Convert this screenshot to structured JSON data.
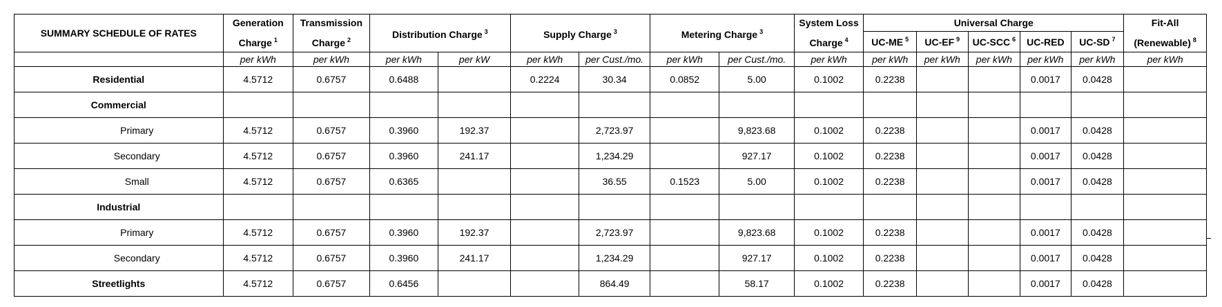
{
  "title": "SUMMARY SCHEDULE OF RATES",
  "headers": {
    "generation": {
      "line1": "Generation",
      "line2": "Charge",
      "sup": "1"
    },
    "transmission": {
      "line1": "Transmission",
      "line2": "Charge",
      "sup": "2"
    },
    "distribution": {
      "text": "Distribution Charge",
      "sup": "3"
    },
    "supply": {
      "text": "Supply Charge",
      "sup": "3"
    },
    "metering": {
      "text": "Metering Charge",
      "sup": "3"
    },
    "system_loss": {
      "line1": "System Loss",
      "line2": "Charge",
      "sup": "4"
    },
    "universal": {
      "text": "Universal Charge"
    },
    "uc_me": {
      "text": "UC-ME",
      "sup": "5"
    },
    "uc_ef": {
      "text": "UC-EF",
      "sup": "9"
    },
    "uc_scc": {
      "text": "UC-SCC",
      "sup": "6"
    },
    "uc_red": {
      "text": "UC-RED",
      "sup": ""
    },
    "uc_sd": {
      "text": "UC-SD",
      "sup": "7"
    },
    "fit_all": {
      "line1": "Fit-All",
      "line2": "(Renewable)",
      "sup": "8"
    }
  },
  "units": [
    "per kWh",
    "per kWh",
    "per kWh",
    "per kW",
    "per kWh",
    "per Cust./mo.",
    "per kWh",
    "per Cust./mo.",
    "per kWh",
    "per kWh",
    "per kWh",
    "per kWh",
    "per kWh",
    "per kWh",
    "per kWh"
  ],
  "rows": [
    {
      "label": "Residential",
      "style": "bold",
      "cells": [
        "4.5712",
        "0.6757",
        "0.6488",
        "",
        "0.2224",
        "30.34",
        "0.0852",
        "5.00",
        "0.1002",
        "0.2238",
        "",
        "",
        "0.0017",
        "0.0428",
        ""
      ]
    },
    {
      "label": "Commercial",
      "style": "bold",
      "cells": [
        "",
        "",
        "",
        "",
        "",
        "",
        "",
        "",
        "",
        "",
        "",
        "",
        "",
        "",
        ""
      ]
    },
    {
      "label": "Primary",
      "style": "indent",
      "cells": [
        "4.5712",
        "0.6757",
        "0.3960",
        "192.37",
        "",
        "2,723.97",
        "",
        "9,823.68",
        "0.1002",
        "0.2238",
        "",
        "",
        "0.0017",
        "0.0428",
        ""
      ]
    },
    {
      "label": "Secondary",
      "style": "indent",
      "cells": [
        "4.5712",
        "0.6757",
        "0.3960",
        "241.17",
        "",
        "1,234.29",
        "",
        "927.17",
        "0.1002",
        "0.2238",
        "",
        "",
        "0.0017",
        "0.0428",
        ""
      ]
    },
    {
      "label": "Small",
      "style": "indent",
      "cells": [
        "4.5712",
        "0.6757",
        "0.6365",
        "",
        "",
        "36.55",
        "0.1523",
        "5.00",
        "0.1002",
        "0.2238",
        "",
        "",
        "0.0017",
        "0.0428",
        ""
      ]
    },
    {
      "label": "Industrial",
      "style": "bold",
      "cells": [
        "",
        "",
        "",
        "",
        "",
        "",
        "",
        "",
        "",
        "",
        "",
        "",
        "",
        "",
        ""
      ]
    },
    {
      "label": "Primary",
      "style": "indent",
      "cells": [
        "4.5712",
        "0.6757",
        "0.3960",
        "192.37",
        "",
        "2,723.97",
        "",
        "9,823.68",
        "0.1002",
        "0.2238",
        "",
        "",
        "0.0017",
        "0.0428",
        ""
      ]
    },
    {
      "label": "Secondary",
      "style": "indent",
      "cells": [
        "4.5712",
        "0.6757",
        "0.3960",
        "241.17",
        "",
        "1,234.29",
        "",
        "927.17",
        "0.1002",
        "0.2238",
        "",
        "",
        "0.0017",
        "0.0428",
        ""
      ]
    },
    {
      "label": "Streetlights",
      "style": "bold",
      "cells": [
        "4.5712",
        "0.6757",
        "0.6456",
        "",
        "",
        "864.49",
        "",
        "58.17",
        "0.1002",
        "0.2238",
        "",
        "",
        "0.0017",
        "0.0428",
        ""
      ]
    }
  ]
}
